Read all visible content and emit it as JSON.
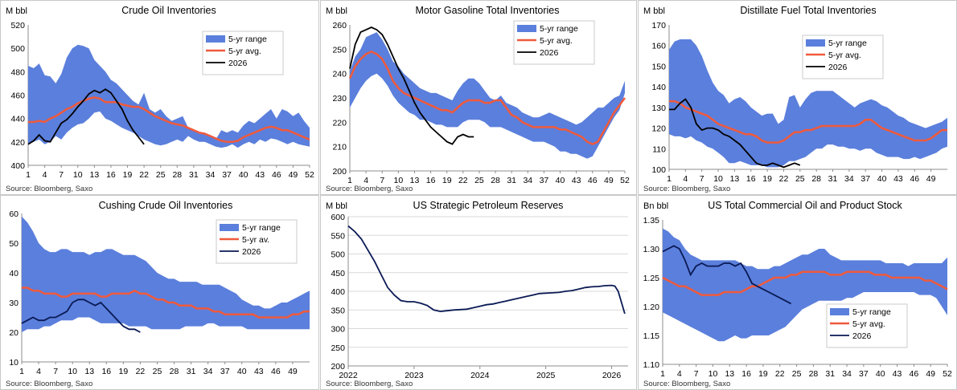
{
  "colors": {
    "range": "#5b7fdc",
    "avg": "#f05a3c",
    "line2026_dark": "#000000",
    "line2026_navy": "#0a1a55",
    "spr": "#0a1a55"
  },
  "chart_data": [
    {
      "id": "crude",
      "type": "area",
      "title": "Crude Oil Inventories",
      "unit": "M bbl",
      "source": "Source: Bloomberg, Saxo",
      "ylim": [
        400,
        520
      ],
      "yticks": [
        400,
        420,
        440,
        460,
        480,
        500,
        520
      ],
      "xlim": [
        1,
        52
      ],
      "xticks": [
        1,
        4,
        7,
        10,
        13,
        16,
        19,
        22,
        25,
        28,
        31,
        34,
        37,
        40,
        43,
        46,
        49,
        52
      ],
      "legend": [
        "5-yr range",
        "5-yr avg.",
        "2026"
      ],
      "line2026_color": "#000000",
      "range_upper": [
        485,
        483,
        487,
        477,
        476,
        470,
        478,
        492,
        500,
        503,
        502,
        500,
        490,
        485,
        480,
        473,
        470,
        465,
        460,
        455,
        452,
        462,
        448,
        445,
        448,
        442,
        438,
        440,
        442,
        432,
        430,
        427,
        428,
        425,
        422,
        430,
        428,
        430,
        428,
        434,
        438,
        436,
        440,
        444,
        448,
        440,
        448,
        446,
        442,
        445,
        438,
        432
      ],
      "range_lower": [
        418,
        420,
        422,
        418,
        420,
        425,
        422,
        428,
        432,
        435,
        436,
        440,
        445,
        446,
        440,
        438,
        435,
        432,
        430,
        428,
        425,
        422,
        420,
        418,
        417,
        418,
        420,
        422,
        420,
        425,
        422,
        420,
        420,
        418,
        416,
        415,
        416,
        418,
        415,
        418,
        420,
        418,
        422,
        420,
        423,
        422,
        420,
        418,
        420,
        418,
        417,
        416
      ],
      "avg": [
        437,
        437,
        438,
        437,
        440,
        442,
        445,
        448,
        450,
        453,
        455,
        457,
        458,
        457,
        454,
        454,
        454,
        452,
        451,
        450,
        450,
        448,
        445,
        442,
        440,
        438,
        436,
        435,
        434,
        432,
        430,
        428,
        427,
        425,
        423,
        421,
        420,
        420,
        421,
        424,
        426,
        428,
        430,
        432,
        433,
        432,
        430,
        430,
        428,
        426,
        424,
        422
      ],
      "line2026": [
        418,
        421,
        426,
        421,
        420,
        428,
        436,
        439,
        444,
        450,
        455,
        461,
        464,
        462,
        465,
        462,
        455,
        448,
        438,
        430,
        424,
        418
      ]
    },
    {
      "id": "gasoline",
      "type": "area",
      "title": "Motor Gasoline Total Inventories",
      "unit": "M bbl",
      "source": "Source: Bloomberg, Saxo",
      "ylim": [
        200,
        260
      ],
      "yticks": [
        200,
        210,
        220,
        230,
        240,
        250,
        260
      ],
      "xlim": [
        1,
        52
      ],
      "xticks": [
        1,
        4,
        7,
        10,
        13,
        16,
        19,
        22,
        25,
        28,
        31,
        34,
        37,
        40,
        43,
        46,
        49,
        52
      ],
      "legend": [
        "5-yr range",
        "5-yr avg.",
        "2026"
      ],
      "line2026_color": "#000000",
      "range_upper": [
        241,
        247,
        250,
        255,
        256,
        257,
        254,
        250,
        245,
        243,
        240,
        238,
        236,
        234,
        233,
        232,
        232,
        231,
        230,
        229,
        233,
        236,
        238,
        238,
        236,
        233,
        230,
        229,
        231,
        228,
        227,
        226,
        224,
        223,
        222,
        222,
        223,
        224,
        223,
        222,
        221,
        220,
        219,
        220,
        222,
        224,
        226,
        226,
        228,
        230,
        231,
        237
      ],
      "range_lower": [
        226,
        230,
        234,
        237,
        239,
        240,
        238,
        235,
        231,
        228,
        226,
        224,
        223,
        221,
        221,
        220,
        219,
        219,
        218,
        218,
        218,
        220,
        221,
        221,
        221,
        220,
        218,
        218,
        218,
        217,
        216,
        215,
        214,
        213,
        212,
        212,
        212,
        211,
        210,
        208,
        208,
        207,
        207,
        206,
        205,
        206,
        210,
        214,
        218,
        222,
        225,
        232
      ],
      "avg": [
        238,
        243,
        246,
        248,
        249,
        248,
        246,
        242,
        237,
        234,
        232,
        231,
        230,
        229,
        228,
        227,
        226,
        225,
        225,
        224,
        226,
        228,
        229,
        229,
        229,
        228,
        228,
        229,
        229,
        226,
        223,
        222,
        220,
        219,
        218,
        218,
        218,
        218,
        218,
        217,
        217,
        216,
        215,
        214,
        212,
        211,
        212,
        216,
        220,
        224,
        227,
        230
      ],
      "line2026": [
        242,
        252,
        257,
        258,
        259,
        258,
        256,
        252,
        247,
        242,
        238,
        233,
        228,
        224,
        221,
        218,
        216,
        214,
        212,
        211,
        214,
        215,
        214,
        214
      ]
    },
    {
      "id": "distillate",
      "type": "area",
      "title": "Distillate Fuel Total Inventories",
      "unit": "M bbl",
      "source": "Source: Bloomberg, Saxo",
      "ylim": [
        100,
        170
      ],
      "yticks": [
        100,
        110,
        120,
        130,
        140,
        150,
        160,
        170
      ],
      "xlim": [
        1,
        52
      ],
      "xticks": [
        1,
        4,
        7,
        10,
        13,
        16,
        19,
        22,
        25,
        28,
        31,
        34,
        37,
        40,
        43,
        46,
        49
      ],
      "legend": [
        "5-yr range",
        "5-yr avg.",
        "2026"
      ],
      "line2026_color": "#000000",
      "range_upper": [
        158,
        162,
        163,
        163,
        163,
        160,
        155,
        148,
        142,
        138,
        136,
        132,
        134,
        135,
        133,
        130,
        128,
        126,
        127,
        127,
        122,
        124,
        135,
        136,
        130,
        134,
        137,
        138,
        138,
        138,
        138,
        136,
        134,
        132,
        130,
        132,
        133,
        134,
        133,
        131,
        130,
        128,
        126,
        125,
        123,
        122,
        121,
        120,
        121,
        122,
        123,
        125
      ],
      "range_lower": [
        117,
        116,
        116,
        115,
        116,
        114,
        113,
        111,
        110,
        108,
        106,
        103,
        103,
        104,
        103,
        102,
        102,
        102,
        101,
        101,
        101,
        102,
        104,
        104,
        105,
        106,
        108,
        110,
        110,
        112,
        112,
        111,
        111,
        110,
        110,
        109,
        110,
        110,
        108,
        107,
        106,
        106,
        106,
        105,
        105,
        106,
        105,
        106,
        107,
        108,
        110,
        111
      ],
      "avg": [
        133,
        133,
        132,
        130,
        129,
        128,
        127,
        126,
        124,
        122,
        121,
        120,
        119,
        118,
        117,
        117,
        116,
        114,
        113,
        113,
        113,
        114,
        116,
        118,
        118,
        119,
        119,
        120,
        121,
        121,
        121,
        121,
        121,
        121,
        121,
        122,
        124,
        124,
        122,
        120,
        119,
        118,
        117,
        116,
        115,
        114,
        114,
        114,
        115,
        117,
        119,
        119
      ],
      "line2026": [
        129,
        129,
        132,
        134,
        130,
        122,
        119,
        120,
        120,
        119,
        117,
        116,
        114,
        112,
        109,
        106,
        103,
        102,
        102,
        103,
        102,
        101,
        102,
        103,
        102
      ]
    },
    {
      "id": "cushing",
      "type": "area",
      "title": "Cushing Crude Oil Inventories",
      "unit": "",
      "source": "Source: Bloomberg, Saxo",
      "ylim": [
        10,
        60
      ],
      "yticks": [
        10,
        20,
        30,
        40,
        50,
        60
      ],
      "xlim": [
        1,
        52
      ],
      "xticks": [
        1,
        4,
        7,
        10,
        13,
        16,
        19,
        22,
        25,
        28,
        31,
        34,
        37,
        40,
        43,
        46,
        49
      ],
      "legend": [
        "5-yr range",
        "5-yr av.",
        "2026"
      ],
      "line2026_color": "#0a1a55",
      "range_upper": [
        59,
        57,
        54,
        50,
        48,
        47,
        47,
        48,
        48,
        47,
        47,
        47,
        46,
        47,
        47,
        48,
        48,
        47,
        46,
        46,
        46,
        45,
        44,
        42,
        40,
        39,
        38,
        38,
        37,
        37,
        37,
        37,
        36,
        36,
        36,
        36,
        35,
        34,
        33,
        31,
        30,
        29,
        29,
        28,
        28,
        29,
        30,
        30,
        31,
        32,
        33,
        34
      ],
      "range_lower": [
        20,
        21,
        21,
        21,
        22,
        22,
        23,
        24,
        24,
        24,
        25,
        25,
        25,
        24,
        23,
        23,
        23,
        23,
        23,
        22,
        22,
        22,
        22,
        21,
        21,
        21,
        21,
        21,
        21,
        22,
        22,
        22,
        22,
        23,
        23,
        22,
        22,
        22,
        22,
        22,
        21,
        21,
        21,
        21,
        21,
        21,
        21,
        21,
        21,
        21,
        21,
        21
      ],
      "avg": [
        35,
        35,
        34,
        34,
        33,
        33,
        33,
        32,
        32,
        33,
        33,
        33,
        33,
        33,
        32,
        32,
        33,
        33,
        33,
        33,
        34,
        33,
        33,
        32,
        31,
        31,
        30,
        30,
        29,
        29,
        29,
        28,
        28,
        28,
        27,
        27,
        26,
        26,
        26,
        26,
        26,
        26,
        25,
        25,
        25,
        25,
        25,
        25,
        26,
        26,
        27,
        27
      ],
      "line2026": [
        23,
        24,
        25,
        24,
        24,
        25,
        25,
        26,
        27,
        30,
        31,
        31,
        30,
        29,
        30,
        28,
        26,
        24,
        22,
        21,
        21,
        20
      ]
    },
    {
      "id": "spr",
      "type": "line",
      "title": "US Strategic Petroleum Reserves",
      "unit": "M bbl",
      "source": "Source: Bloomberg, Saxo",
      "ylim": [
        200,
        600
      ],
      "yticks": [
        200,
        250,
        300,
        350,
        400,
        450,
        500,
        550,
        600
      ],
      "xlim": [
        2022.0,
        2026.25
      ],
      "xticks": [
        "2022",
        "2023",
        "2024",
        "2025",
        "2026"
      ],
      "x": [
        2022.0,
        2022.1,
        2022.2,
        2022.3,
        2022.4,
        2022.5,
        2022.6,
        2022.7,
        2022.8,
        2022.9,
        2023.0,
        2023.1,
        2023.2,
        2023.3,
        2023.4,
        2023.5,
        2023.6,
        2023.7,
        2023.8,
        2023.9,
        2024.0,
        2024.1,
        2024.2,
        2024.3,
        2024.4,
        2024.5,
        2024.6,
        2024.7,
        2024.8,
        2024.9,
        2025.0,
        2025.1,
        2025.2,
        2025.3,
        2025.4,
        2025.5,
        2025.6,
        2025.7,
        2025.8,
        2025.9,
        2026.0,
        2026.05,
        2026.1,
        2026.15,
        2026.2
      ],
      "y": [
        575,
        560,
        540,
        510,
        480,
        445,
        410,
        390,
        375,
        372,
        372,
        368,
        362,
        350,
        346,
        348,
        350,
        351,
        352,
        356,
        360,
        364,
        366,
        370,
        374,
        378,
        382,
        386,
        390,
        394,
        395,
        396,
        397,
        400,
        402,
        406,
        410,
        412,
        413,
        415,
        416,
        414,
        400,
        370,
        340
      ]
    },
    {
      "id": "commercial",
      "type": "area",
      "title": "US Total Commercial Oil and Product Stock",
      "unit": "Bn bbl",
      "source": "Source: Bloomberg, Saxo",
      "ylim": [
        1.1,
        1.35
      ],
      "yticks": [
        1.1,
        1.15,
        1.2,
        1.25,
        1.3,
        1.35
      ],
      "yticklabels": [
        "1.10",
        "1.15",
        "1.20",
        "1.25",
        "1.30",
        "1.35"
      ],
      "xlim": [
        1,
        52
      ],
      "xticks": [
        1,
        4,
        7,
        10,
        13,
        16,
        19,
        22,
        25,
        28,
        31,
        34,
        37,
        40,
        43,
        46,
        49,
        52
      ],
      "legend": [
        "5-yr range",
        "5-yr avg.",
        "2026"
      ],
      "line2026_color": "#0a1a55",
      "range_upper": [
        1.335,
        1.33,
        1.32,
        1.315,
        1.3,
        1.29,
        1.285,
        1.28,
        1.28,
        1.28,
        1.28,
        1.28,
        1.28,
        1.28,
        1.275,
        1.27,
        1.27,
        1.265,
        1.265,
        1.265,
        1.27,
        1.27,
        1.275,
        1.28,
        1.285,
        1.29,
        1.29,
        1.295,
        1.3,
        1.3,
        1.29,
        1.285,
        1.28,
        1.28,
        1.28,
        1.28,
        1.28,
        1.28,
        1.28,
        1.28,
        1.275,
        1.275,
        1.275,
        1.275,
        1.27,
        1.275,
        1.275,
        1.275,
        1.275,
        1.275,
        1.275,
        1.285
      ],
      "range_lower": [
        1.19,
        1.185,
        1.18,
        1.175,
        1.17,
        1.165,
        1.16,
        1.155,
        1.15,
        1.145,
        1.14,
        1.14,
        1.145,
        1.15,
        1.145,
        1.145,
        1.15,
        1.15,
        1.15,
        1.15,
        1.155,
        1.16,
        1.165,
        1.175,
        1.185,
        1.195,
        1.2,
        1.205,
        1.21,
        1.21,
        1.21,
        1.21,
        1.21,
        1.215,
        1.215,
        1.22,
        1.225,
        1.225,
        1.225,
        1.225,
        1.225,
        1.225,
        1.225,
        1.225,
        1.225,
        1.225,
        1.22,
        1.22,
        1.22,
        1.215,
        1.2,
        1.185
      ],
      "avg": [
        1.25,
        1.245,
        1.24,
        1.235,
        1.235,
        1.23,
        1.225,
        1.22,
        1.22,
        1.22,
        1.22,
        1.225,
        1.225,
        1.225,
        1.225,
        1.23,
        1.235,
        1.235,
        1.24,
        1.245,
        1.25,
        1.25,
        1.25,
        1.255,
        1.255,
        1.26,
        1.26,
        1.26,
        1.26,
        1.26,
        1.255,
        1.255,
        1.255,
        1.26,
        1.26,
        1.26,
        1.26,
        1.26,
        1.255,
        1.255,
        1.255,
        1.25,
        1.25,
        1.25,
        1.25,
        1.25,
        1.25,
        1.245,
        1.245,
        1.24,
        1.235,
        1.23
      ],
      "line2026": [
        1.295,
        1.3,
        1.305,
        1.3,
        1.28,
        1.255,
        1.27,
        1.275,
        1.27,
        1.27,
        1.27,
        1.275,
        1.275,
        1.27,
        1.275,
        1.26,
        1.24,
        1.235,
        1.23,
        1.225,
        1.22,
        1.215,
        1.21,
        1.205
      ]
    }
  ]
}
